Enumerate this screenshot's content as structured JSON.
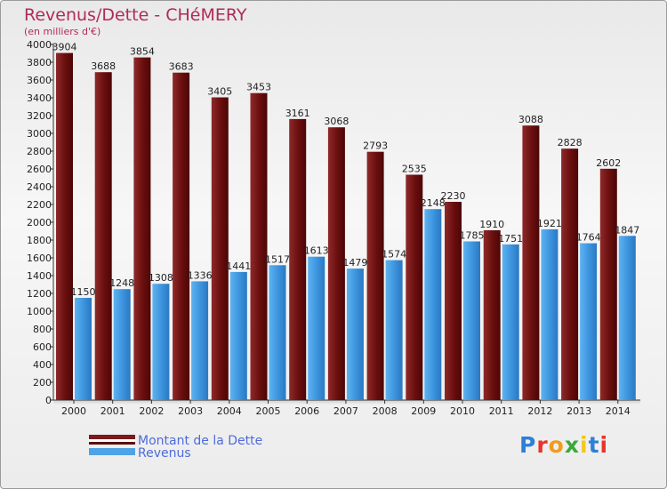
{
  "chart_data": {
    "type": "bar",
    "title": "Revenus/Dette - CHéMERY",
    "subtitle": "(en milliers d'€)",
    "categories": [
      "2000",
      "2001",
      "2002",
      "2003",
      "2004",
      "2005",
      "2006",
      "2007",
      "2008",
      "2009",
      "2010",
      "2011",
      "2012",
      "2013",
      "2014"
    ],
    "series": [
      {
        "name": "Montant de la Dette",
        "color": "#7a1a1a",
        "values": [
          3904,
          3688,
          3854,
          3683,
          3405,
          3453,
          3161,
          3068,
          2793,
          2535,
          2230,
          1910,
          3088,
          2828,
          2602
        ]
      },
      {
        "name": "Revenus",
        "color": "#4ea3e6",
        "values": [
          1150,
          1248,
          1308,
          1336,
          1441,
          1517,
          1613,
          1479,
          1574,
          2148,
          1785,
          1751,
          1921,
          1764,
          1847
        ]
      }
    ],
    "ylim": [
      0,
      4000
    ],
    "ytick_step": 200,
    "grid": false,
    "legend_position": "bottom-left"
  },
  "watermark": "Proxiti"
}
